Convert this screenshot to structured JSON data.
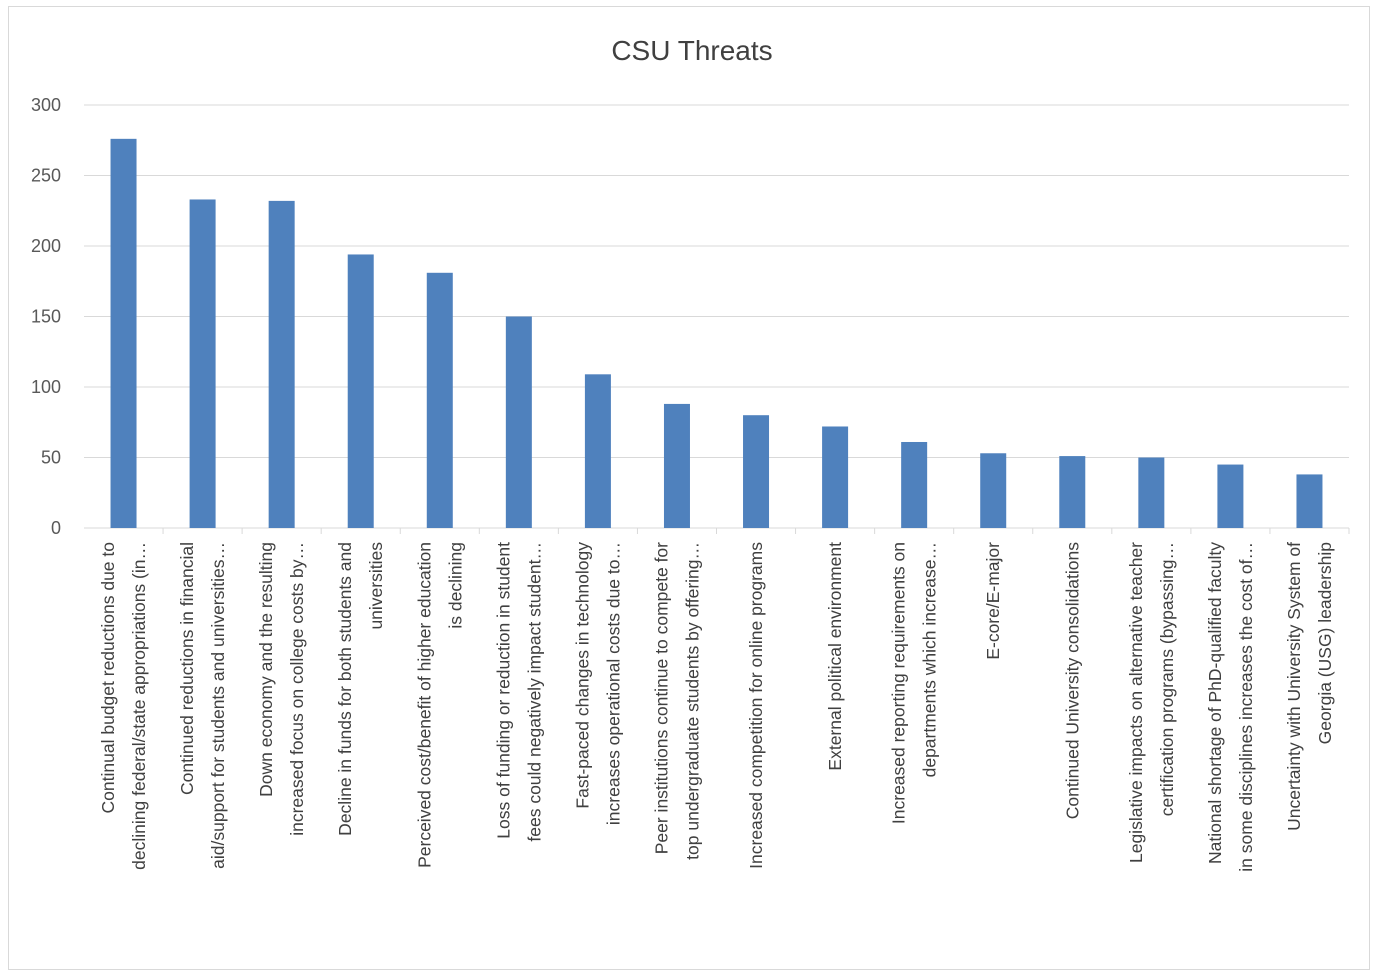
{
  "chart_data": {
    "type": "bar",
    "title": "CSU Threats",
    "xlabel": "",
    "ylabel": "",
    "ylim": [
      0,
      300
    ],
    "yticks": [
      0,
      50,
      100,
      150,
      200,
      250,
      300
    ],
    "grid": true,
    "legend": "none",
    "bar_color": "#4f81bd",
    "grid_color": "#d9d9d9",
    "categories": [
      [
        "Continual budget reductions due to",
        "declining federal/state appropriations (in…"
      ],
      [
        "Continued reductions in financial",
        "aid/support for students and universities…"
      ],
      [
        "Down economy and the resulting",
        "increased focus on college costs by…"
      ],
      [
        "Decline in funds for both students and",
        "universities"
      ],
      [
        "Perceived cost/benefit of higher education",
        "is declining"
      ],
      [
        "Loss of funding or reduction in student",
        "fees could negatively impact student…"
      ],
      [
        "Fast-paced changes in technology",
        "increases operational costs due to…"
      ],
      [
        "Peer institutions continue to compete for",
        "top undergraduate students by offering…"
      ],
      [
        "Increased competition for online programs"
      ],
      [
        "External political environment"
      ],
      [
        "Increased reporting requirements on",
        "departments which increase…"
      ],
      [
        "E-core/E-major"
      ],
      [
        "Continued University consolidations"
      ],
      [
        "Legislative impacts on alternative teacher",
        "certification programs (bypassing…"
      ],
      [
        "National shortage of PhD-qualified faculty",
        "in some disciplines increases the cost of…"
      ],
      [
        "Uncertainty with University System of",
        "Georgia (USG) leadership"
      ]
    ],
    "values": [
      276,
      233,
      232,
      194,
      181,
      150,
      109,
      88,
      80,
      72,
      61,
      53,
      51,
      50,
      45,
      38
    ]
  }
}
